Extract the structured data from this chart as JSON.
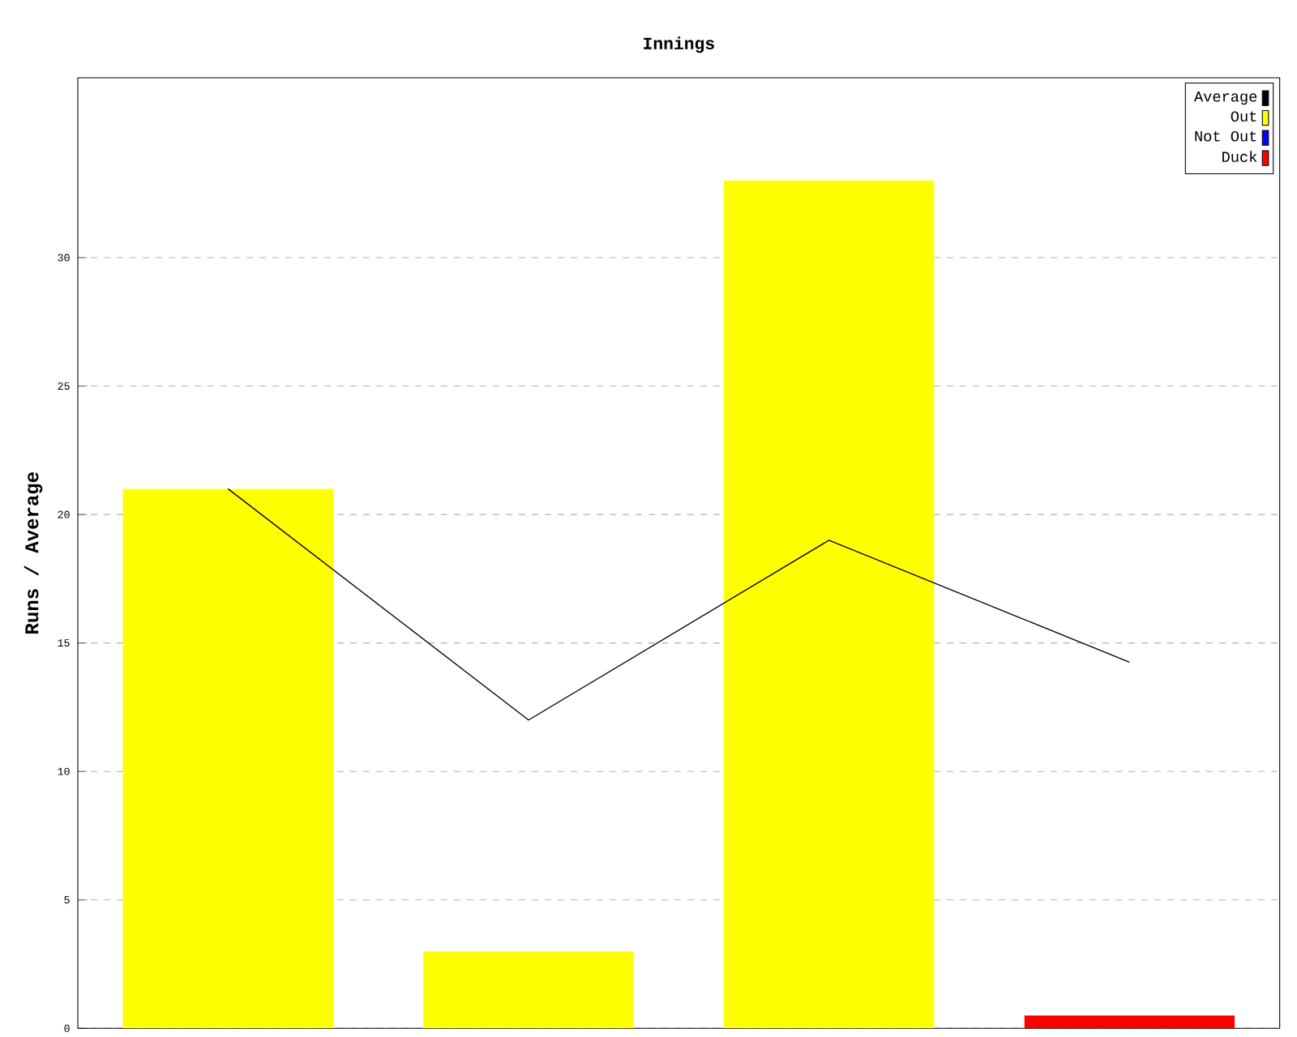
{
  "chart_data": {
    "type": "bar",
    "title": "Innings",
    "ylabel": "Runs / Average",
    "categories": [
      null,
      null,
      null,
      null
    ],
    "series": [
      {
        "name": "Average",
        "type": "line",
        "color": "#000000",
        "values": [
          21,
          12,
          19,
          14.25
        ]
      },
      {
        "name": "Out",
        "color": "#ffff00",
        "values": [
          21,
          3,
          33,
          null
        ]
      },
      {
        "name": "Not Out",
        "color": "#0000ff",
        "values": [
          null,
          null,
          null,
          null
        ]
      },
      {
        "name": "Duck",
        "color": "#ff0000",
        "values": [
          null,
          null,
          null,
          0.5
        ]
      }
    ],
    "stacked": true,
    "ylim": [
      0,
      37
    ],
    "yticks": [
      0,
      5,
      10,
      15,
      20,
      25,
      30
    ],
    "grid": "y",
    "legend": "top right",
    "tick_labels": "y"
  }
}
